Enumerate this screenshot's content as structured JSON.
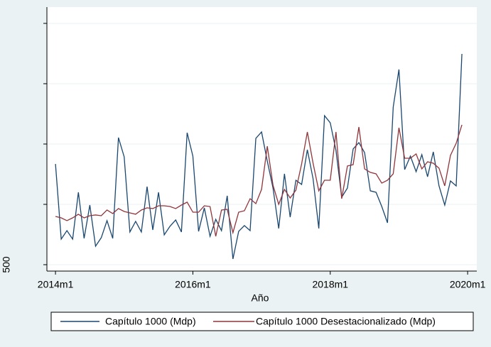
{
  "chart_data": {
    "type": "line",
    "x_label": "Año",
    "x": [
      648,
      649,
      650,
      651,
      652,
      653,
      654,
      655,
      656,
      657,
      658,
      659,
      660,
      661,
      662,
      663,
      664,
      665,
      666,
      667,
      668,
      669,
      670,
      671,
      672,
      673,
      674,
      675,
      676,
      677,
      678,
      679,
      680,
      681,
      682,
      683,
      684,
      685,
      686,
      687,
      688,
      689,
      690,
      691,
      692,
      693,
      694,
      695,
      696,
      697,
      698,
      699,
      700,
      701,
      702,
      703,
      704,
      705,
      706,
      707,
      708,
      709,
      710,
      711,
      712,
      713,
      714,
      715,
      716,
      717,
      718,
      719
    ],
    "series": [
      {
        "name": "Capítulo 1000 (Mdp)",
        "color": "#1a476f",
        "values": [
          1335,
          712,
          782,
          712,
          1100,
          718,
          994,
          653,
          724,
          865,
          718,
          1553,
          1394,
          771,
          859,
          771,
          1147,
          788,
          1100,
          747,
          818,
          871,
          771,
          1594,
          1400,
          776,
          971,
          735,
          876,
          782,
          1071,
          547,
          776,
          824,
          782,
          1547,
          1600,
          1359,
          1135,
          800,
          1253,
          894,
          1200,
          1165,
          1453,
          1212,
          800,
          1735,
          1676,
          1447,
          1059,
          1135,
          1459,
          1512,
          1429,
          1112,
          1100,
          982,
          847,
          1806,
          2118,
          1288,
          1400,
          1271,
          1412,
          1229,
          1435,
          1153,
          994,
          1194,
          1153,
          2247
        ]
      },
      {
        "name": "Capítulo 1000 Desestacionalizado (Mdp)",
        "color": "#90353b",
        "values": [
          900,
          888,
          865,
          888,
          918,
          888,
          906,
          912,
          906,
          953,
          924,
          965,
          941,
          929,
          918,
          953,
          971,
          965,
          988,
          988,
          982,
          965,
          994,
          1018,
          935,
          935,
          988,
          982,
          735,
          953,
          959,
          765,
          935,
          947,
          1047,
          1006,
          1124,
          1482,
          1159,
          1000,
          1124,
          1053,
          1118,
          1335,
          1600,
          1341,
          1112,
          1200,
          1200,
          1600,
          1047,
          1318,
          1329,
          1641,
          1294,
          1265,
          1253,
          1176,
          1200,
          1253,
          1635,
          1382,
          1382,
          1418,
          1294,
          1353,
          1341,
          1300,
          1153,
          1406,
          1506,
          1659
        ]
      }
    ],
    "xlim": [
      646.5,
      721.6
    ],
    "xticks": [
      {
        "value": 648,
        "label": "2014m1"
      },
      {
        "value": 672,
        "label": "2016m1"
      },
      {
        "value": 696,
        "label": "2018m1"
      },
      {
        "value": 720,
        "label": "2020m1"
      }
    ],
    "ylim": [
      447,
      2635
    ],
    "yticks": [
      500
    ],
    "yminorticks": [
      1000,
      1500,
      2000,
      2500
    ],
    "grid": true,
    "legend": "bottom"
  }
}
